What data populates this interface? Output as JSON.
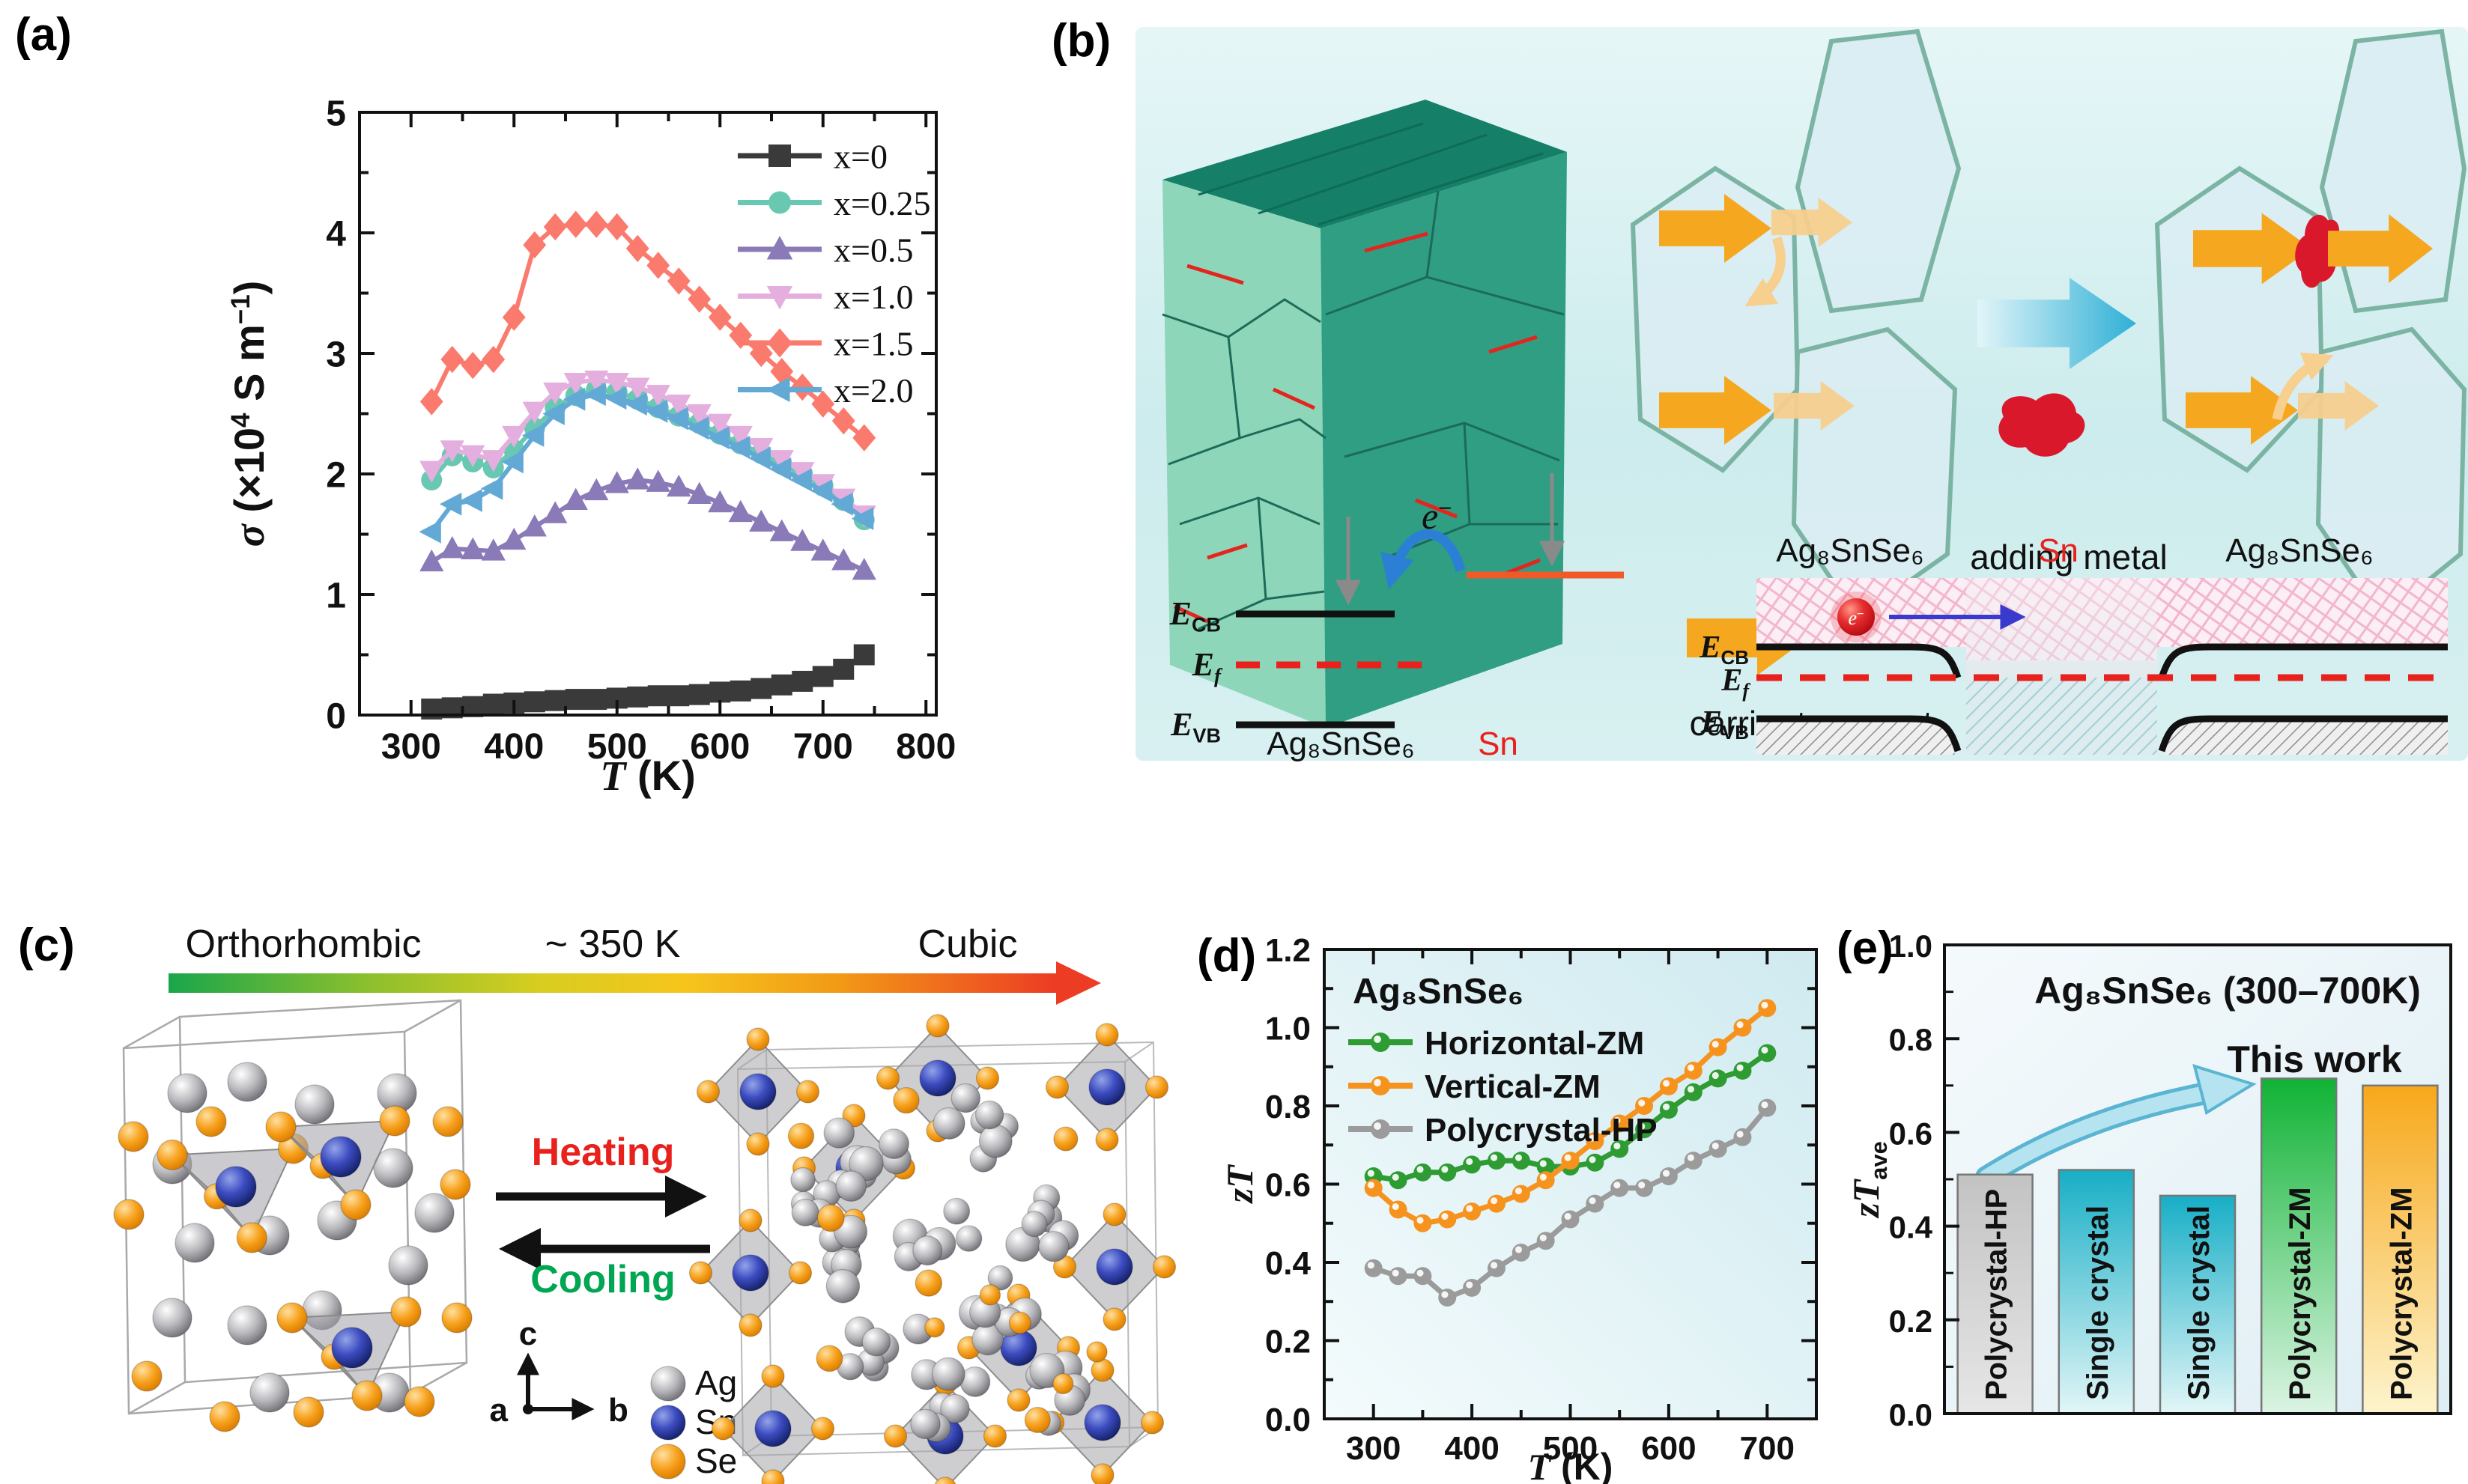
{
  "figure": {
    "panels": {
      "a": {
        "label": "(a)"
      },
      "b": {
        "label": "(b)",
        "carrier_transport": "carrier transport",
        "adding_metal": "adding metal",
        "band_left": {
          "electron": "e",
          "ecb": {
            "m": "E",
            "s": "CB"
          },
          "ef": {
            "m": "E",
            "s": "f"
          },
          "evb": {
            "m": "E",
            "s": "VB"
          },
          "material": "Ag₈SnSe₆",
          "metal": "Sn"
        },
        "band_right": {
          "electron": "e",
          "top_labels": [
            "Ag₈SnSe₆",
            "Sn",
            "Ag₈SnSe₆"
          ],
          "ecb": {
            "m": "E",
            "s": "CB"
          },
          "ef": {
            "m": "E",
            "s": "f"
          },
          "evb": {
            "m": "E",
            "s": "VB"
          }
        }
      },
      "c": {
        "label": "(c)",
        "phase_left": "Orthorhombic",
        "transition_temp": "~ 350 K",
        "phase_right": "Cubic",
        "heating": "Heating",
        "cooling": "Cooling",
        "heating_color": "#e8211d",
        "cooling_color": "#00a651",
        "axes": {
          "a": "a",
          "b": "b",
          "c": "c"
        },
        "atom_legend": [
          {
            "label": "Ag",
            "color": "#9c9ca0"
          },
          {
            "label": "Sn",
            "color": "#253292"
          },
          {
            "label": "Se",
            "color": "#f59300"
          }
        ],
        "gradient_arrow_colors": [
          "#1aa64b",
          "#8abf2e",
          "#d8cd20",
          "#f6c51c",
          "#f29b16",
          "#ec3c24"
        ]
      },
      "d": {
        "label": "(d)"
      },
      "e": {
        "label": "(e)"
      }
    }
  },
  "chart_data": [
    {
      "panel": "a",
      "type": "line",
      "title": "",
      "xlabel": "T (K)",
      "ylabel": "σ (×10⁴ S m⁻¹)",
      "xlabel_parts": [
        {
          "t": "T",
          "i": true
        },
        {
          "t": " (K)"
        }
      ],
      "ylabel_parts": [
        {
          "t": "σ",
          "i": true
        },
        {
          "t": " (×10"
        },
        {
          "t": "4",
          "sup": true
        },
        {
          "t": " S m"
        },
        {
          "t": "−1",
          "sup": true
        },
        {
          "t": ")"
        }
      ],
      "xlim": [
        250,
        810
      ],
      "ylim": [
        0,
        5
      ],
      "xticks": [
        300,
        400,
        500,
        600,
        700,
        800
      ],
      "yticks": [
        0,
        1,
        2,
        3,
        4,
        5
      ],
      "grid": false,
      "legend_position": "top-right",
      "x": [
        320,
        340,
        360,
        380,
        400,
        420,
        440,
        460,
        480,
        500,
        520,
        540,
        560,
        580,
        600,
        620,
        640,
        660,
        680,
        700,
        720,
        740
      ],
      "series": [
        {
          "name": "x=0",
          "color": "#3a3a3a",
          "marker": "square",
          "values": [
            0.05,
            0.06,
            0.07,
            0.09,
            0.1,
            0.11,
            0.12,
            0.13,
            0.13,
            0.14,
            0.15,
            0.16,
            0.16,
            0.17,
            0.19,
            0.2,
            0.22,
            0.25,
            0.28,
            0.32,
            0.38,
            0.5
          ]
        },
        {
          "name": "x=0.25",
          "color": "#68c8b2",
          "marker": "circle",
          "values": [
            1.95,
            2.15,
            2.1,
            2.05,
            2.2,
            2.38,
            2.55,
            2.65,
            2.7,
            2.68,
            2.62,
            2.55,
            2.48,
            2.42,
            2.33,
            2.25,
            2.17,
            2.08,
            2.0,
            1.9,
            1.78,
            1.62
          ]
        },
        {
          "name": "x=0.5",
          "color": "#8a7ab8",
          "marker": "triangle-up",
          "values": [
            1.27,
            1.38,
            1.37,
            1.36,
            1.45,
            1.56,
            1.67,
            1.78,
            1.86,
            1.92,
            1.95,
            1.93,
            1.89,
            1.83,
            1.76,
            1.68,
            1.6,
            1.52,
            1.44,
            1.36,
            1.28,
            1.2
          ]
        },
        {
          "name": "x=1.0",
          "color": "#e4aede",
          "marker": "triangle-down",
          "values": [
            2.03,
            2.2,
            2.16,
            2.12,
            2.32,
            2.52,
            2.68,
            2.76,
            2.78,
            2.76,
            2.72,
            2.66,
            2.58,
            2.5,
            2.42,
            2.32,
            2.22,
            2.12,
            2.02,
            1.92,
            1.8,
            1.66
          ]
        },
        {
          "name": "x=1.5",
          "color": "#fb7a6e",
          "marker": "diamond",
          "values": [
            2.6,
            2.95,
            2.9,
            2.95,
            3.3,
            3.9,
            4.05,
            4.07,
            4.07,
            4.05,
            3.87,
            3.73,
            3.6,
            3.45,
            3.3,
            3.15,
            3.0,
            2.85,
            2.72,
            2.58,
            2.44,
            2.3
          ]
        },
        {
          "name": "x=2.0",
          "color": "#63a9d6",
          "marker": "triangle-left",
          "values": [
            1.52,
            1.75,
            1.78,
            1.88,
            2.1,
            2.32,
            2.5,
            2.62,
            2.66,
            2.63,
            2.58,
            2.52,
            2.46,
            2.38,
            2.3,
            2.22,
            2.13,
            2.04,
            1.95,
            1.86,
            1.75,
            1.63
          ]
        }
      ]
    },
    {
      "panel": "d",
      "type": "line",
      "title": "Ag₈SnSe₆",
      "xlabel": "T (K)",
      "ylabel": "zT",
      "xlabel_parts": [
        {
          "t": "T",
          "i": true
        },
        {
          "t": " (K)"
        }
      ],
      "ylabel_parts": [
        {
          "t": "zT",
          "i": true
        }
      ],
      "xlim": [
        250,
        750
      ],
      "ylim": [
        0,
        1.2
      ],
      "xticks": [
        300,
        400,
        500,
        600,
        700
      ],
      "yticks": [
        0,
        0.2,
        0.4,
        0.6,
        0.8,
        1.0,
        1.2
      ],
      "grid": false,
      "legend_position": "top-left",
      "x": [
        300,
        325,
        350,
        375,
        400,
        425,
        450,
        475,
        500,
        525,
        550,
        575,
        600,
        625,
        650,
        675,
        700
      ],
      "series": [
        {
          "name": "Horizontal-ZM",
          "color": "#2e9b33",
          "marker": "circle",
          "values": [
            0.62,
            0.61,
            0.63,
            0.63,
            0.65,
            0.66,
            0.66,
            0.645,
            0.645,
            0.655,
            0.69,
            0.74,
            0.79,
            0.835,
            0.87,
            0.89,
            0.935
          ]
        },
        {
          "name": "Vertical-ZM",
          "color": "#f6921e",
          "marker": "circle",
          "values": [
            0.59,
            0.535,
            0.5,
            0.51,
            0.53,
            0.55,
            0.575,
            0.61,
            0.66,
            0.71,
            0.755,
            0.8,
            0.85,
            0.89,
            0.95,
            1.0,
            1.05
          ]
        },
        {
          "name": "Polycrystal-HP",
          "color": "#9b9b9b",
          "marker": "circle",
          "values": [
            0.385,
            0.365,
            0.365,
            0.31,
            0.335,
            0.385,
            0.425,
            0.455,
            0.51,
            0.55,
            0.59,
            0.59,
            0.62,
            0.66,
            0.69,
            0.72,
            0.795
          ]
        }
      ]
    },
    {
      "panel": "e",
      "type": "bar",
      "title": "Ag₈SnSe₆ (300–700K)",
      "annotation": "This work",
      "ylabel": "zT",
      "ylabel_sub": "ave",
      "ylabel_parts": [
        {
          "t": "zT",
          "i": true
        },
        {
          "t": "ave",
          "sub": true
        }
      ],
      "ylim": [
        0,
        1.0
      ],
      "yticks": [
        0,
        0.2,
        0.4,
        0.6,
        0.8,
        1.0
      ],
      "categories": [
        "Polycrystal-HP",
        "Single crystal",
        "Single crystal",
        "Polycrystal-ZM",
        "Polycrystal-ZM"
      ],
      "values": [
        0.51,
        0.52,
        0.465,
        0.715,
        0.7
      ],
      "bar_colors": [
        {
          "top": "#c3c3c3",
          "bottom": "#e6e6e6"
        },
        {
          "top": "#17aec6",
          "bottom": "#e2f6f7"
        },
        {
          "top": "#17aec6",
          "bottom": "#e2f6f7"
        },
        {
          "top": "#10b335",
          "bottom": "#dcf4e4"
        },
        {
          "top": "#f7a81b",
          "bottom": "#fdf4cd"
        }
      ]
    }
  ]
}
